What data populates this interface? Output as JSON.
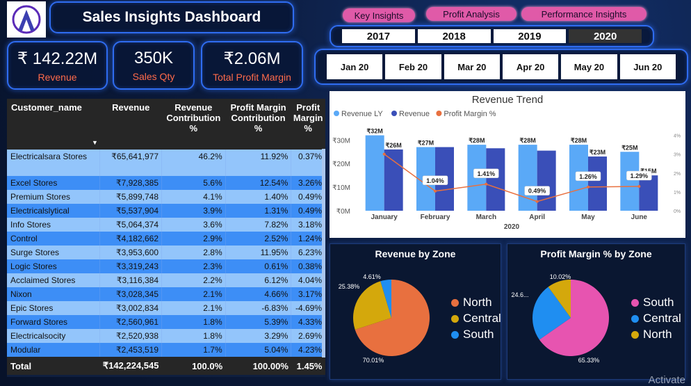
{
  "header": {
    "title": "Sales Insights Dashboard",
    "nav": [
      "Key Insights",
      "Profit Analysis",
      "Performance Insights"
    ]
  },
  "kpis": [
    {
      "value": "₹ 142.22M",
      "label": "Revenue"
    },
    {
      "value": "350K",
      "label": "Sales Qty"
    },
    {
      "value": "₹2.06M",
      "label": "Total Profit Margin"
    }
  ],
  "years": [
    "2017",
    "2018",
    "2019",
    "2020"
  ],
  "selected_year": "2020",
  "months": [
    "Jan 20",
    "Feb 20",
    "Mar 20",
    "Apr 20",
    "May 20",
    "Jun 20"
  ],
  "table": {
    "headers": [
      "Customer_name",
      "Revenue",
      "Revenue Contribution %",
      "Profit Margin Contribution %",
      "Profit Margin %"
    ],
    "rows": [
      [
        "Electricalsara Stores",
        "₹65,641,977",
        "46.2%",
        "11.92%",
        "0.37%"
      ],
      [
        "Excel Stores",
        "₹7,928,385",
        "5.6%",
        "12.54%",
        "3.26%"
      ],
      [
        "Premium Stores",
        "₹5,899,748",
        "4.1%",
        "1.40%",
        "0.49%"
      ],
      [
        "Electricalslytical",
        "₹5,537,904",
        "3.9%",
        "1.31%",
        "0.49%"
      ],
      [
        "Info Stores",
        "₹5,064,374",
        "3.6%",
        "7.82%",
        "3.18%"
      ],
      [
        "Control",
        "₹4,182,662",
        "2.9%",
        "2.52%",
        "1.24%"
      ],
      [
        "Surge Stores",
        "₹3,953,600",
        "2.8%",
        "11.95%",
        "6.23%"
      ],
      [
        "Logic Stores",
        "₹3,319,243",
        "2.3%",
        "0.61%",
        "0.38%"
      ],
      [
        "Acclaimed Stores",
        "₹3,116,384",
        "2.2%",
        "6.12%",
        "4.04%"
      ],
      [
        "Nixon",
        "₹3,028,345",
        "2.1%",
        "4.66%",
        "3.17%"
      ],
      [
        "Epic Stores",
        "₹3,002,834",
        "2.1%",
        "-6.83%",
        "-4.69%"
      ],
      [
        "Forward Stores",
        "₹2,560,961",
        "1.8%",
        "5.39%",
        "4.33%"
      ],
      [
        "Electricalsocity",
        "₹2,520,938",
        "1.8%",
        "3.29%",
        "2.69%"
      ],
      [
        "Modular",
        "₹2,453,519",
        "1.7%",
        "5.04%",
        "4.23%"
      ]
    ],
    "total": [
      "Total",
      "₹142,224,545",
      "100.0%",
      "100.00%",
      "1.45%"
    ]
  },
  "chart_data": [
    {
      "type": "bar",
      "title": "Revenue Trend",
      "xlabel": "2020",
      "categories": [
        "January",
        "February",
        "March",
        "April",
        "May",
        "June"
      ],
      "series": [
        {
          "name": "Revenue LY",
          "color": "#5aa9f7",
          "values": [
            32,
            27,
            28,
            28,
            28,
            25
          ],
          "labels": [
            "₹32M",
            "₹27M",
            "₹28M",
            "₹28M",
            "₹28M",
            "₹25M"
          ]
        },
        {
          "name": "Revenue",
          "color": "#3a4fb8",
          "values": [
            26,
            27,
            26.5,
            25.5,
            23,
            15
          ],
          "labels": [
            "₹26M",
            "",
            "",
            "",
            "₹23M",
            "₹15M"
          ]
        },
        {
          "name": "Profit Margin %",
          "color": "#e8703f",
          "type": "line",
          "values": [
            3.0,
            1.04,
            1.41,
            0.49,
            1.26,
            1.29
          ],
          "labels": [
            "",
            "1.04%",
            "1.41%",
            "0.49%",
            "1.26%",
            "1.29%"
          ]
        }
      ],
      "y_ticks": [
        "₹0M",
        "₹10M",
        "₹20M",
        "₹30M"
      ],
      "y2_ticks": [
        "0%",
        "1%",
        "2%",
        "3%",
        "4%"
      ],
      "ylim": [
        0,
        36
      ],
      "y2lim": [
        0,
        4.5
      ]
    },
    {
      "type": "pie",
      "title": "Revenue by Zone",
      "slices": [
        {
          "name": "North",
          "value": 70.01,
          "label": "70.01%",
          "color": "#e8703f"
        },
        {
          "name": "Central",
          "value": 25.38,
          "label": "25.38%",
          "color": "#d4a80c"
        },
        {
          "name": "South",
          "value": 4.61,
          "label": "4.61%",
          "color": "#1f8ef1"
        }
      ]
    },
    {
      "type": "pie",
      "title": "Profit Margin % by Zone",
      "slices": [
        {
          "name": "South",
          "value": 65.33,
          "label": "65.33%",
          "color": "#e754b0"
        },
        {
          "name": "Central",
          "value": 24.65,
          "label": "24.6...",
          "color": "#1f8ef1"
        },
        {
          "name": "North",
          "value": 10.02,
          "label": "10.02%",
          "color": "#d4a80c"
        }
      ]
    }
  ],
  "watermark": "Activate"
}
